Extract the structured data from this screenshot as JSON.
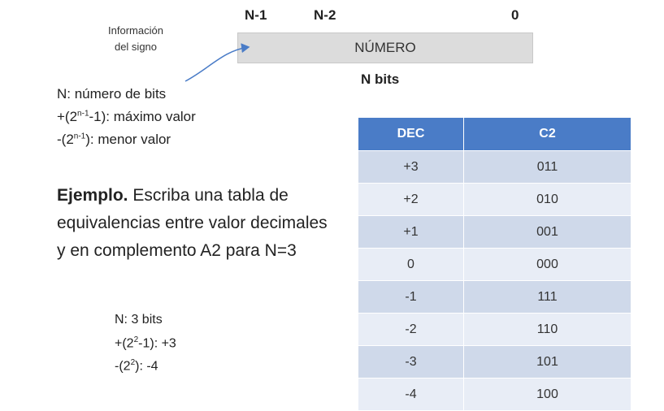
{
  "bits_header": {
    "n1": "N-1",
    "n2": "N-2",
    "zero": "0"
  },
  "number_box": "NÚMERO",
  "n_bits": "N bits",
  "sign_note": {
    "line1": "Información",
    "line2": "del signo"
  },
  "definitions": {
    "n_label": "N",
    "n_text": ": número de bits",
    "max_prefix": "+(2",
    "max_sup": "n-1",
    "max_suffix": "-1): máximo valor",
    "min_prefix": "-(2",
    "min_sup": "n-1",
    "min_suffix": "): menor valor"
  },
  "example": {
    "bold": "Ejemplo.",
    "text": " Escriba una tabla de equivalencias entre valor decimales y en complemento A2 para N=3"
  },
  "solution": {
    "bits": "N: 3 bits",
    "max_prefix": "+(2",
    "max_sup": "2",
    "max_suffix": "-1): +3",
    "min_prefix": "-(2",
    "min_sup": "2",
    "min_suffix": "): -4"
  },
  "table": {
    "headers": [
      "DEC",
      "C2"
    ],
    "rows": [
      [
        "+3",
        "011"
      ],
      [
        "+2",
        "010"
      ],
      [
        "+1",
        "001"
      ],
      [
        "0",
        "000"
      ],
      [
        "-1",
        "111"
      ],
      [
        "-2",
        "110"
      ],
      [
        "-3",
        "101"
      ],
      [
        "-4",
        "100"
      ]
    ]
  },
  "colors": {
    "header": "#4a7cc7",
    "row_dark": "#cfd9ea",
    "row_light": "#e8edf6",
    "box": "#dcdcdc"
  }
}
